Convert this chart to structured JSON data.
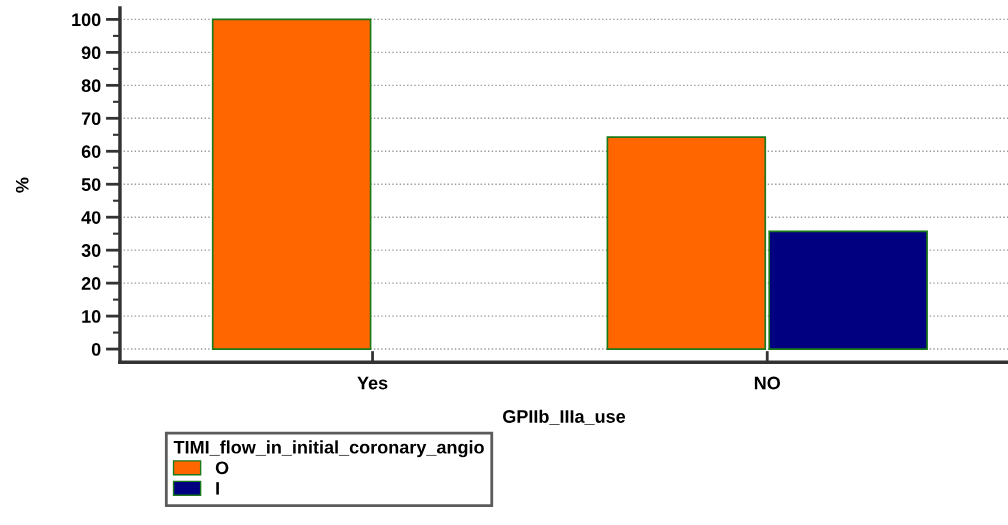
{
  "chart_data": {
    "type": "bar",
    "categories": [
      "Yes",
      "NO"
    ],
    "series": [
      {
        "name": "O",
        "color": "#ff6600",
        "values": [
          100,
          64.3
        ]
      },
      {
        "name": "I",
        "color": "#000080",
        "values": [
          null,
          35.7
        ]
      }
    ],
    "xlabel": "GPIIb_IIIa_use",
    "ylabel": "%",
    "legend_title": "TIMI_flow_in_initial_coronary_angio",
    "ylim": [
      -4,
      103.5
    ],
    "yticks": [
      0,
      10,
      20,
      30,
      40,
      50,
      60,
      70,
      80,
      90,
      100
    ],
    "grid": "y",
    "legend": "bottom"
  }
}
